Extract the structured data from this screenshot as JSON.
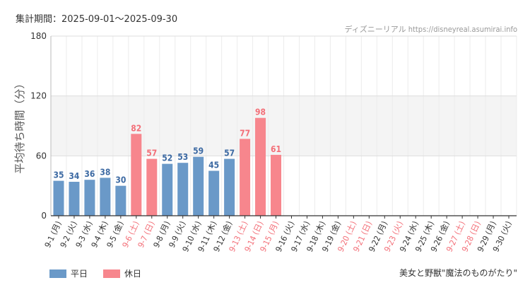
{
  "header": {
    "period": "集計期間：2025-09-01〜2025-09-30",
    "credit": "ディズニーリアル https://disneyreal.asumirai.info"
  },
  "footer": {
    "attraction": "美女と野獣\"魔法のものがたり\""
  },
  "colors": {
    "weekday": "#6a99c8",
    "holiday": "#f7868d",
    "weekday_label": "#3d6aa3",
    "holiday_label": "#f36f78",
    "band": "#f4f4f4",
    "grid": "#dddddd"
  },
  "chart_data": {
    "type": "bar",
    "ylabel": "平均待ち時間（分）",
    "ylim": [
      0,
      180
    ],
    "yticks": [
      "0",
      "60",
      "120",
      "180"
    ],
    "shaded_band": [
      60,
      120
    ],
    "grid": true,
    "legend": {
      "placement": "bottom-left",
      "entries": [
        {
          "name": "平日",
          "key": "weekday"
        },
        {
          "name": "休日",
          "key": "holiday"
        }
      ]
    },
    "categories": [
      "9-1 (月)",
      "9-2 (火)",
      "9-3 (水)",
      "9-4 (木)",
      "9-5 (金)",
      "9-6 (土)",
      "9-7 (日)",
      "9-8 (月)",
      "9-9 (火)",
      "9-10 (水)",
      "9-11 (木)",
      "9-12 (金)",
      "9-13 (土)",
      "9-14 (日)",
      "9-15 (月)",
      "9-16 (火)",
      "9-17 (水)",
      "9-18 (木)",
      "9-19 (金)",
      "9-20 (土)",
      "9-21 (日)",
      "9-22 (月)",
      "9-23 (火)",
      "9-24 (水)",
      "9-25 (木)",
      "9-26 (金)",
      "9-27 (土)",
      "9-28 (日)",
      "9-29 (月)",
      "9-30 (火)"
    ],
    "day_type": [
      "weekday",
      "weekday",
      "weekday",
      "weekday",
      "weekday",
      "holiday",
      "holiday",
      "weekday",
      "weekday",
      "weekday",
      "weekday",
      "weekday",
      "holiday",
      "holiday",
      "holiday",
      "weekday",
      "weekday",
      "weekday",
      "weekday",
      "holiday",
      "holiday",
      "weekday",
      "holiday",
      "weekday",
      "weekday",
      "weekday",
      "holiday",
      "holiday",
      "weekday",
      "weekday"
    ],
    "values": [
      35,
      34,
      36,
      38,
      30,
      82,
      57,
      52,
      53,
      59,
      45,
      57,
      77,
      98,
      61,
      null,
      null,
      null,
      null,
      null,
      null,
      null,
      null,
      null,
      null,
      null,
      null,
      null,
      null,
      null
    ],
    "data_labels": [
      "35",
      "34",
      "36",
      "38",
      "30",
      "82",
      "57",
      "52",
      "53",
      "59",
      "45",
      "57",
      "77",
      "98",
      "61",
      "",
      "",
      "",
      "",
      "",
      "",
      "",
      "",
      "",
      "",
      "",
      "",
      "",
      "",
      ""
    ]
  }
}
